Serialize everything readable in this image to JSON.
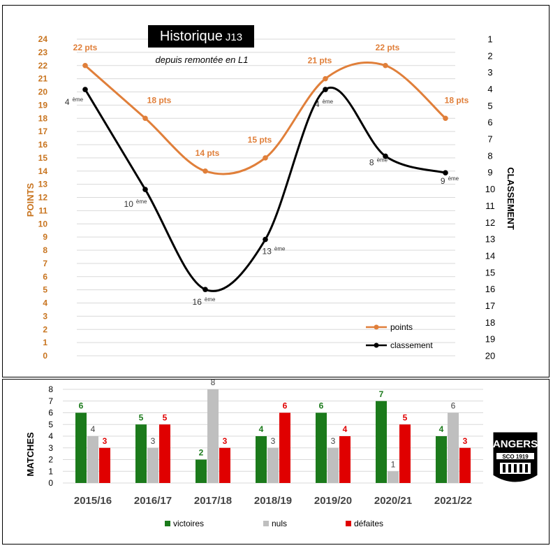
{
  "title": {
    "main": "Historique",
    "sub": "J13"
  },
  "subtitle": "depuis remontée en L1",
  "colors": {
    "points": "#E07F3A",
    "classement": "#000000",
    "victoires": "#1B7A1B",
    "nuls": "#BFBFBF",
    "defaites": "#E00000",
    "left_axis": "#C8741F"
  },
  "chart_data": [
    {
      "type": "line",
      "title": "Historique J13",
      "x": [
        "2015/16",
        "2016/17",
        "2017/18",
        "2018/19",
        "2019/20",
        "2020/21",
        "2021/22"
      ],
      "left_axis": {
        "label": "POINTS",
        "min": 0,
        "max": 24,
        "ticks": [
          "0",
          "1",
          "2",
          "3",
          "4",
          "5",
          "6",
          "7",
          "8",
          "9",
          "10",
          "11",
          "12",
          "13",
          "14",
          "15",
          "16",
          "17",
          "18",
          "19",
          "20",
          "21",
          "22",
          "23",
          "24"
        ]
      },
      "right_axis": {
        "label": "CLASSEMENT",
        "min": 1,
        "max": 20,
        "inverted": true,
        "ticks": [
          "1",
          "2",
          "3",
          "4",
          "5",
          "6",
          "7",
          "8",
          "9",
          "10",
          "11",
          "12",
          "13",
          "14",
          "15",
          "16",
          "17",
          "18",
          "19",
          "20"
        ]
      },
      "series": [
        {
          "name": "points",
          "axis": "left",
          "values": [
            22,
            18,
            14,
            15,
            21,
            22,
            18
          ],
          "labels": [
            "22 pts",
            "18 pts",
            "14 pts",
            "15 pts",
            "21 pts",
            "22 pts",
            "18 pts"
          ]
        },
        {
          "name": "classement",
          "axis": "right",
          "values": [
            4,
            10,
            16,
            13,
            4,
            8,
            9
          ],
          "labels": [
            "4",
            "10",
            "16",
            "13",
            "4",
            "8",
            "9"
          ],
          "label_suffix": "ème"
        }
      ],
      "legend": [
        "points",
        "classement"
      ]
    },
    {
      "type": "bar",
      "categories": [
        "2015/16",
        "2016/17",
        "2017/18",
        "2018/19",
        "2019/20",
        "2020/21",
        "2021/22"
      ],
      "ylabel": "MATCHES",
      "ylim": [
        0,
        8
      ],
      "y_ticks": [
        "0",
        "1",
        "2",
        "3",
        "4",
        "5",
        "6",
        "7",
        "8"
      ],
      "series": [
        {
          "name": "victoires",
          "values": [
            6,
            5,
            2,
            4,
            6,
            7,
            4
          ]
        },
        {
          "name": "nuls",
          "values": [
            4,
            3,
            8,
            3,
            3,
            1,
            6
          ]
        },
        {
          "name": "défaites",
          "values": [
            3,
            5,
            3,
            6,
            4,
            5,
            3
          ]
        }
      ]
    }
  ],
  "logo": {
    "text": "ANGERS",
    "sub": "SCO 1919"
  }
}
